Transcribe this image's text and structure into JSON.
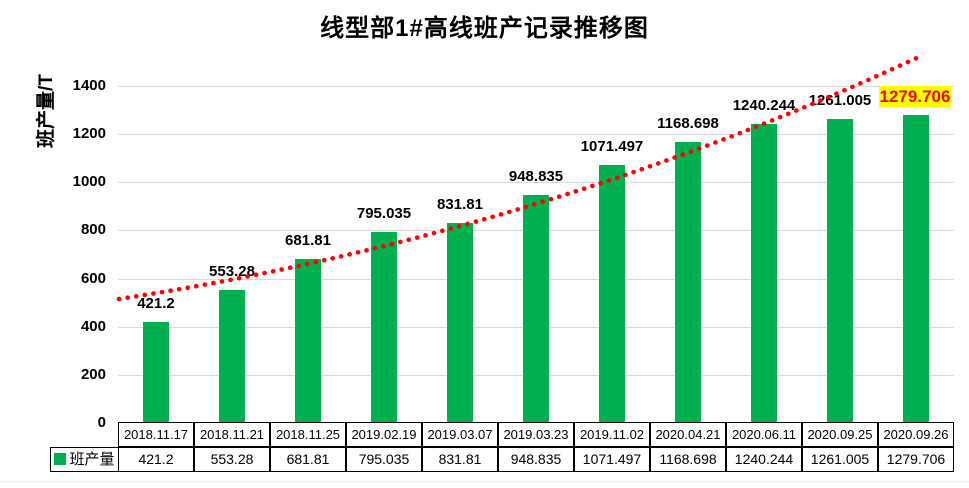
{
  "title": "线型部1#高线班产记录推移图",
  "y_axis_label": "班产量/T",
  "legend_label": "班产量",
  "colors": {
    "bar": "#00B050",
    "trend_line": "#FF0000",
    "gridline": "#D9D9D9",
    "highlight_background": "#FFFF00",
    "highlight_text": "#FF0000",
    "label_text": "#000000",
    "table_border": "#000000"
  },
  "chart_data": {
    "type": "bar",
    "title": "线型部1#高线班产记录推移图",
    "ylabel": "班产量/T",
    "xlabel": "",
    "categories": [
      "2018.11.17",
      "2018.11.21",
      "2018.11.25",
      "2019.02.19",
      "2019.03.07",
      "2019.03.23",
      "2019.11.02",
      "2020.04.21",
      "2020.06.11",
      "2020.09.25",
      "2020.09.26"
    ],
    "series": [
      {
        "name": "班产量",
        "values": [
          421.2,
          553.28,
          681.81,
          795.035,
          831.81,
          948.835,
          1071.497,
          1168.698,
          1240.244,
          1261.005,
          1279.706
        ]
      }
    ],
    "ylim": [
      0,
      1520
    ],
    "yticks": [
      0,
      200,
      400,
      600,
      800,
      1000,
      1200,
      1400
    ],
    "grid": true,
    "data_labels": true,
    "highlighted_point": {
      "category": "2020.09.26",
      "value": 1279.706
    },
    "legend_position": "data-table-row-header",
    "trendline": {
      "style": "dotted",
      "shape": "exponential",
      "color": "#FF0000"
    },
    "data_table_shown": true
  }
}
